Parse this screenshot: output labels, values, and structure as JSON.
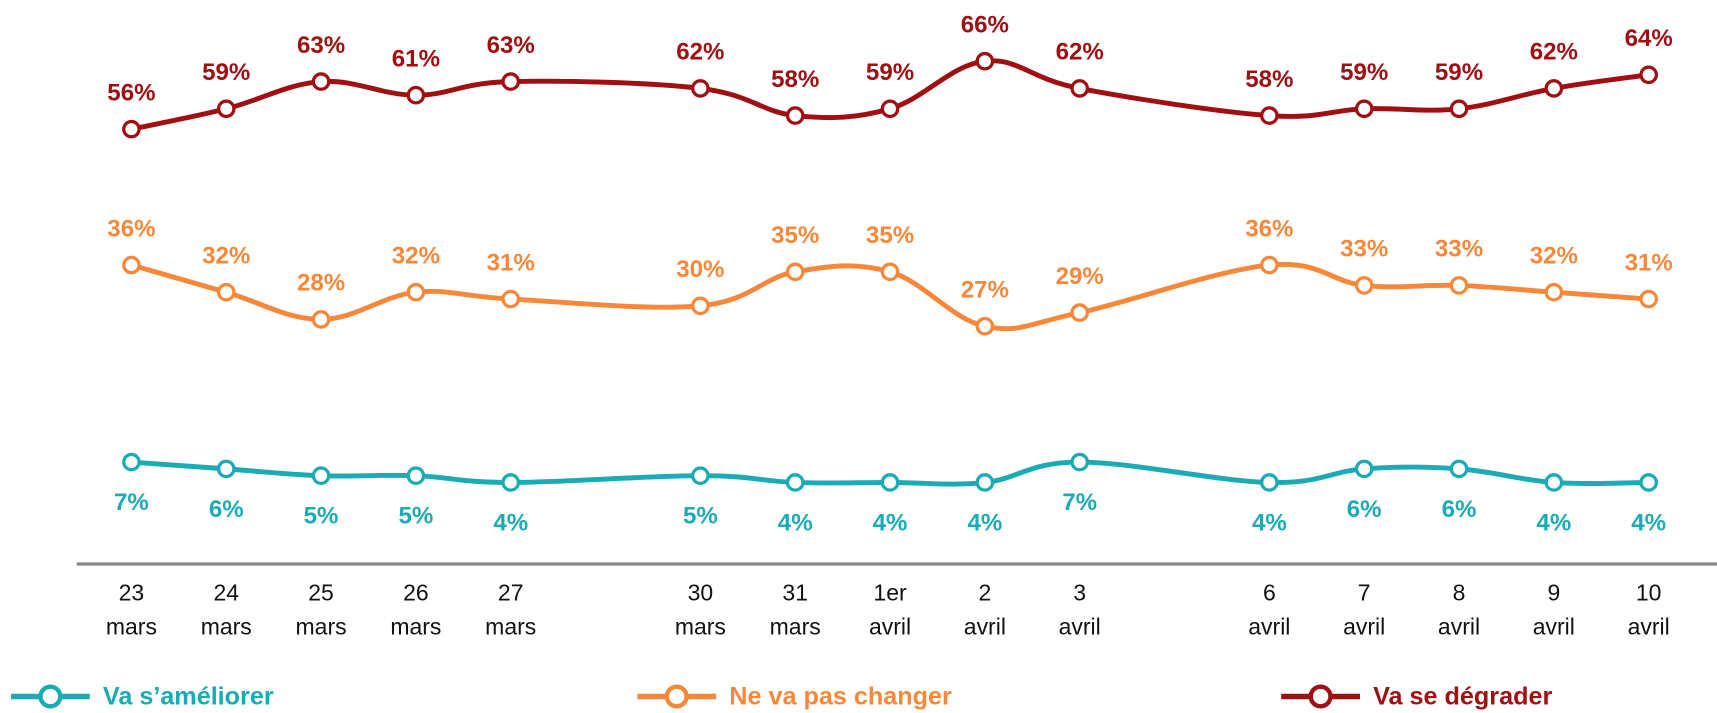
{
  "chart_data": {
    "type": "line",
    "categories": [
      "23 mars",
      "24 mars",
      "25 mars",
      "26 mars",
      "27 mars",
      "30 mars",
      "31 mars",
      "1er avril",
      "2 avril",
      "3 avril",
      "6 avril",
      "7 avril",
      "8 avril",
      "9 avril",
      "10 avril"
    ],
    "series": [
      {
        "name": "Va s’améliorer",
        "color": "#1aabb5",
        "values": [
          7,
          6,
          5,
          5,
          4,
          5,
          4,
          4,
          4,
          7,
          4,
          6,
          6,
          4,
          4
        ],
        "value_labels": [
          "7%",
          "6%",
          "5%",
          "5%",
          "4%",
          "5%",
          "4%",
          "4%",
          "4%",
          "7%",
          "4%",
          "6%",
          "6%",
          "4%",
          "4%"
        ]
      },
      {
        "name": "Ne va pas changer",
        "color": "#f7883a",
        "values": [
          36,
          32,
          28,
          32,
          31,
          30,
          35,
          35,
          27,
          29,
          36,
          33,
          33,
          32,
          31
        ],
        "value_labels": [
          "36%",
          "32%",
          "28%",
          "32%",
          "31%",
          "30%",
          "35%",
          "35%",
          "27%",
          "29%",
          "36%",
          "33%",
          "33%",
          "32%",
          "31%"
        ]
      },
      {
        "name": "Va se dégrader",
        "color": "#a00f12",
        "values": [
          56,
          59,
          63,
          61,
          63,
          62,
          58,
          59,
          66,
          62,
          58,
          59,
          59,
          62,
          64
        ],
        "value_labels": [
          "56%",
          "59%",
          "63%",
          "61%",
          "63%",
          "62%",
          "58%",
          "59%",
          "66%",
          "62%",
          "58%",
          "59%",
          "59%",
          "62%",
          "64%"
        ]
      }
    ],
    "ylim": [
      -8,
      75
    ]
  }
}
